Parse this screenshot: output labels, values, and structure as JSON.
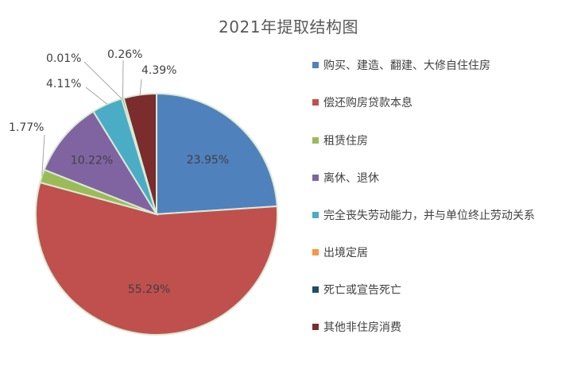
{
  "chart_data": {
    "type": "pie",
    "title": "2021年提取结构图",
    "categories": [
      "购买、建造、翻建、大修自住住房",
      "偿还购房贷款本息",
      "租赁住房",
      "离休、退休",
      "完全丧失劳动能力，并与单位终止劳动关系",
      "出境定居",
      "死亡或宣告死亡",
      "其他非住房消费"
    ],
    "values": [
      23.95,
      55.29,
      1.77,
      10.22,
      4.11,
      0.01,
      0.26,
      4.39
    ],
    "data_labels": [
      "23.95%",
      "55.29%",
      "1.77%",
      "10.22%",
      "4.11%",
      "0.01%",
      "0.26%",
      "4.39%"
    ],
    "colors": [
      "#4f81bd",
      "#c0504d",
      "#9bbb59",
      "#8064a2",
      "#4bacc6",
      "#f79646",
      "#1f4e63",
      "#7b2c2c"
    ],
    "legend_position": "right",
    "start_angle": "12 o'clock",
    "direction": "clockwise"
  }
}
